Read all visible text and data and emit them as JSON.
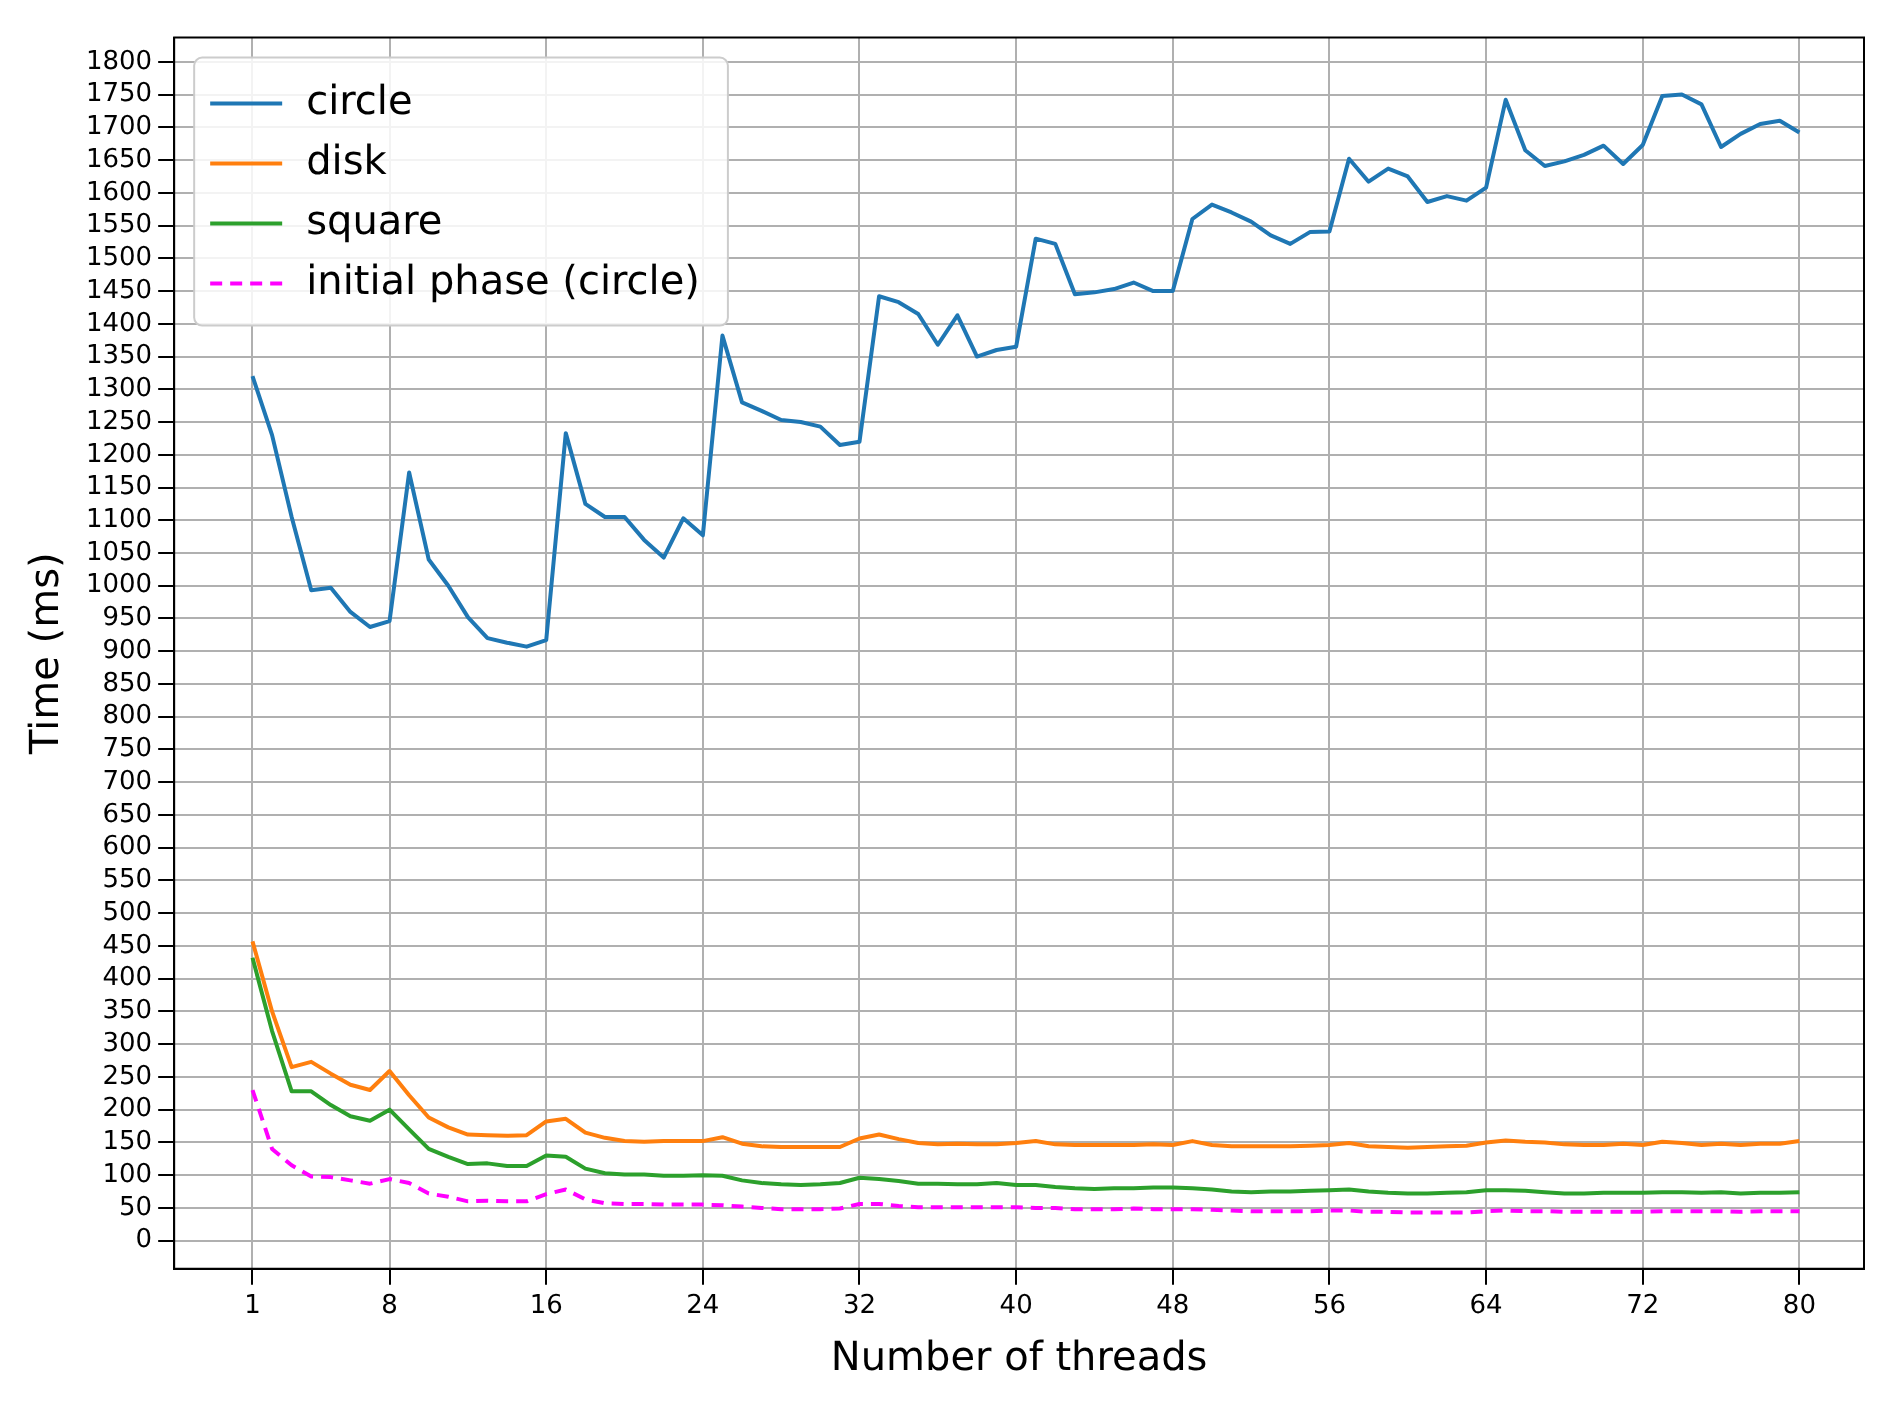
{
  "chart_data": {
    "type": "line",
    "xlabel": "Number of threads",
    "ylabel": "Time (ms)",
    "x": [
      1,
      2,
      3,
      4,
      5,
      6,
      7,
      8,
      9,
      10,
      11,
      12,
      13,
      14,
      15,
      16,
      17,
      18,
      19,
      20,
      21,
      22,
      23,
      24,
      25,
      26,
      27,
      28,
      29,
      30,
      31,
      32,
      33,
      34,
      35,
      36,
      37,
      38,
      39,
      40,
      41,
      42,
      43,
      44,
      45,
      46,
      47,
      48,
      49,
      50,
      51,
      52,
      53,
      54,
      55,
      56,
      57,
      58,
      59,
      60,
      61,
      62,
      63,
      64,
      65,
      66,
      67,
      68,
      69,
      70,
      71,
      72,
      73,
      74,
      75,
      76,
      77,
      78,
      79,
      80
    ],
    "xlim": [
      -3,
      83.3
    ],
    "xticks": [
      1,
      8,
      16,
      24,
      32,
      40,
      48,
      56,
      64,
      72,
      80
    ],
    "ylim": [
      -43,
      1837
    ],
    "yticks": [
      0,
      50,
      100,
      150,
      200,
      250,
      300,
      350,
      400,
      450,
      500,
      550,
      600,
      650,
      700,
      750,
      800,
      850,
      900,
      950,
      1000,
      1050,
      1100,
      1150,
      1200,
      1250,
      1300,
      1350,
      1400,
      1450,
      1500,
      1550,
      1600,
      1650,
      1700,
      1750,
      1800
    ],
    "grid": true,
    "legend": "top left",
    "marker": "none",
    "series": [
      {
        "name": "circle",
        "color": "#1f77b4",
        "line_style": "solid",
        "values": [
          1320,
          1230,
          1105,
          993,
          997,
          960,
          937,
          946,
          1173,
          1040,
          1000,
          952,
          920,
          913,
          907,
          917,
          1233,
          1125,
          1105,
          1105,
          1070,
          1043,
          1103,
          1077,
          1382,
          1280,
          1267,
          1253,
          1250,
          1243,
          1215,
          1220,
          1442,
          1433,
          1415,
          1368,
          1413,
          1350,
          1360,
          1365,
          1530,
          1522,
          1445,
          1448,
          1453,
          1463,
          1450,
          1450,
          1560,
          1582,
          1570,
          1556,
          1535,
          1522,
          1540,
          1541,
          1652,
          1617,
          1637,
          1625,
          1586,
          1595,
          1588,
          1608,
          1742,
          1665,
          1641,
          1648,
          1658,
          1672,
          1644,
          1673,
          1748,
          1750,
          1735,
          1670,
          1690,
          1705,
          1710,
          1692
        ]
      },
      {
        "name": "disk",
        "color": "#ff7f0e",
        "line_style": "solid",
        "values": [
          457,
          350,
          265,
          273,
          255,
          238,
          230,
          259,
          222,
          188,
          173,
          162,
          161,
          160,
          161,
          182,
          186,
          165,
          157,
          152,
          151,
          152,
          152,
          152,
          158,
          148,
          144,
          143,
          143,
          143,
          143,
          156,
          162,
          155,
          149,
          147,
          148,
          147,
          147,
          149,
          152,
          147,
          146,
          146,
          146,
          146,
          147,
          146,
          152,
          146,
          144,
          144,
          144,
          144,
          145,
          146,
          149,
          144,
          143,
          142,
          143,
          144,
          145,
          150,
          153,
          151,
          150,
          147,
          146,
          146,
          148,
          146,
          151,
          149,
          146,
          148,
          146,
          148,
          148,
          152
        ]
      },
      {
        "name": "square",
        "color": "#2ca02c",
        "line_style": "solid",
        "values": [
          432,
          320,
          228,
          228,
          207,
          190,
          183,
          200,
          170,
          140,
          128,
          117,
          118,
          114,
          114,
          130,
          128,
          110,
          103,
          101,
          101,
          99,
          99,
          100,
          99,
          92,
          88,
          86,
          85,
          86,
          88,
          96,
          94,
          91,
          87,
          87,
          86,
          86,
          88,
          85,
          85,
          82,
          80,
          79,
          80,
          80,
          81,
          81,
          80,
          78,
          75,
          74,
          75,
          75,
          76,
          77,
          78,
          75,
          73,
          72,
          72,
          73,
          74,
          77,
          77,
          76,
          74,
          72,
          72,
          73,
          73,
          73,
          74,
          74,
          73,
          74,
          72,
          73,
          73,
          74
        ]
      },
      {
        "name": "initial phase (circle)",
        "color": "#ff00ff",
        "line_style": "dashed",
        "values": [
          230,
          140,
          115,
          98,
          97,
          92,
          87,
          94,
          88,
          72,
          67,
          60,
          61,
          60,
          60,
          71,
          78,
          63,
          57,
          56,
          56,
          55,
          55,
          55,
          54,
          52,
          50,
          48,
          48,
          48,
          49,
          56,
          56,
          53,
          51,
          51,
          51,
          51,
          51,
          51,
          50,
          50,
          48,
          48,
          48,
          49,
          48,
          48,
          48,
          47,
          46,
          45,
          45,
          45,
          45,
          46,
          46,
          44,
          44,
          43,
          43,
          43,
          43,
          45,
          46,
          45,
          45,
          44,
          44,
          44,
          44,
          44,
          45,
          45,
          45,
          45,
          44,
          45,
          45,
          45
        ]
      }
    ]
  }
}
